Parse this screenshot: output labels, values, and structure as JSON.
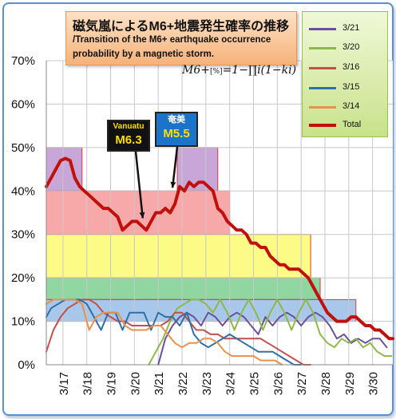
{
  "title": {
    "ja": "磁気嵐によるM6+地震発生確率の推移",
    "en": "/Transition of the M6+ earthquake occurrence probability by a magnetic storm."
  },
  "formula": {
    "lhs": "M6+",
    "sub": "[%]",
    "rhs": "=1−∏i(1−ki)"
  },
  "annotations": [
    {
      "top": "Vanuatu",
      "big": "M6.3",
      "x": 20.35,
      "y": 33
    },
    {
      "top": "奄美",
      "big": "M5.5",
      "x": 21.6,
      "y": 40
    }
  ],
  "chart_data": {
    "type": "line",
    "xlabel": "",
    "ylabel": "",
    "ylim": [
      0,
      70
    ],
    "xlim": [
      16.3,
      30.85
    ],
    "yticks": [
      "0%",
      "10%",
      "20%",
      "30%",
      "40%",
      "50%",
      "60%",
      "70%"
    ],
    "ytick_values": [
      0,
      10,
      20,
      30,
      40,
      50,
      60,
      70
    ],
    "xticks": [
      "3/17",
      "3/18",
      "3/19",
      "3/20",
      "3/21",
      "3/22",
      "3/23",
      "3/24",
      "3/25",
      "3/26",
      "3/27",
      "3/28",
      "3/29",
      "3/30"
    ],
    "xtick_values": [
      17,
      18,
      19,
      20,
      21,
      22,
      23,
      24,
      25,
      26,
      27,
      28,
      29,
      30
    ],
    "grid": true,
    "legend_position": "top-right",
    "bands": [
      {
        "x0": 16.3,
        "x1": 17.8,
        "y0": 40,
        "y1": 50,
        "color": "#c9a6d8"
      },
      {
        "x0": 21.8,
        "x1": 23.5,
        "y0": 40,
        "y1": 50,
        "color": "#c9a6d8"
      },
      {
        "x0": 16.3,
        "x1": 24.0,
        "y0": 30,
        "y1": 40,
        "color": "#f7a9a9"
      },
      {
        "x0": 16.3,
        "x1": 27.4,
        "y0": 20,
        "y1": 30,
        "color": "#fbfb86"
      },
      {
        "x0": 16.3,
        "x1": 27.8,
        "y0": 15,
        "y1": 20,
        "color": "#8fd6a0"
      },
      {
        "x0": 16.3,
        "x1": 29.3,
        "y0": 10,
        "y1": 15,
        "color": "#a7c8ea"
      }
    ],
    "series": [
      {
        "name": "3/21",
        "color": "#6b4f9a",
        "x": [
          21.0,
          21.3,
          21.6,
          21.9,
          22.2,
          22.5,
          22.8,
          23.1,
          23.4,
          23.7,
          24.0,
          24.3,
          24.6,
          24.9,
          25.2,
          25.5,
          25.8,
          26.1,
          26.4,
          26.7,
          27.0,
          27.3,
          27.6,
          27.9,
          28.2,
          28.5,
          28.8,
          29.1,
          29.4,
          29.7,
          30.0,
          30.3,
          30.6
        ],
        "y": [
          0,
          6,
          9,
          11,
          12,
          11,
          9,
          12,
          11,
          9,
          11,
          12,
          11,
          9,
          7,
          11,
          9,
          11,
          12,
          11,
          9,
          11,
          12,
          11,
          9,
          6,
          7,
          5,
          6,
          5,
          6,
          6,
          4
        ]
      },
      {
        "name": "3/20",
        "color": "#8db84a",
        "x": [
          20.6,
          20.9,
          21.2,
          21.5,
          21.8,
          22.1,
          22.4,
          22.7,
          23.0,
          23.3,
          23.6,
          23.9,
          24.2,
          24.5,
          24.8,
          25.1,
          25.4,
          25.7,
          26.0,
          26.3,
          26.6,
          26.9,
          27.2,
          27.5,
          27.8,
          28.1,
          28.4,
          28.7,
          29.0,
          29.3,
          29.6,
          29.9,
          30.2,
          30.5,
          30.8
        ],
        "y": [
          0,
          3,
          6,
          10,
          13,
          14,
          15,
          15,
          14,
          12,
          15,
          12,
          8,
          12,
          15,
          12,
          8,
          12,
          15,
          12,
          8,
          12,
          15,
          12,
          7,
          5,
          4,
          6,
          5,
          6,
          4,
          5,
          3,
          2,
          2
        ]
      },
      {
        "name": "3/16",
        "color": "#c0504d",
        "x": [
          16.3,
          16.6,
          16.9,
          17.2,
          17.5,
          17.8,
          18.1,
          18.4,
          18.7,
          19.0,
          19.3,
          19.6,
          19.9,
          20.2,
          20.5,
          20.8,
          21.1,
          21.4,
          21.7,
          22.0,
          22.3,
          22.6,
          22.9,
          23.2,
          23.5,
          23.8,
          24.1,
          24.4,
          24.7,
          25.0,
          25.3,
          25.6,
          25.9,
          26.2,
          26.5,
          26.8,
          27.1,
          27.4
        ],
        "y": [
          3,
          8,
          11,
          13,
          14,
          15,
          15,
          14,
          12,
          11,
          10,
          10,
          9,
          9,
          9,
          9,
          9,
          10,
          12,
          12,
          10,
          8,
          8,
          7,
          7,
          6,
          6,
          6,
          6,
          6,
          6,
          5,
          4,
          3,
          2,
          1,
          0,
          0
        ]
      },
      {
        "name": "3/15",
        "color": "#2e6fa7",
        "x": [
          16.3,
          16.5,
          16.8,
          17.1,
          17.4,
          17.7,
          18.0,
          18.3,
          18.6,
          18.9,
          19.2,
          19.5,
          19.8,
          20.1,
          20.4,
          20.7,
          21.0,
          21.3,
          21.6,
          21.9,
          22.2,
          22.5,
          22.8,
          23.1,
          23.4,
          23.7,
          24.0,
          24.3,
          24.6,
          24.9,
          25.2,
          25.5,
          25.8,
          26.1,
          26.4,
          26.7,
          27.0
        ],
        "y": [
          11,
          13,
          14,
          15,
          15,
          15,
          14,
          11,
          8,
          12,
          12,
          8,
          12,
          12,
          12,
          8,
          12,
          11,
          11,
          9,
          12,
          7,
          5,
          4,
          5,
          6,
          7,
          6,
          5,
          4,
          3,
          3,
          3,
          2,
          1,
          0,
          0
        ]
      },
      {
        "name": "3/14",
        "color": "#e8914a",
        "x": [
          16.3,
          16.6,
          16.9,
          17.2,
          17.5,
          17.8,
          18.1,
          18.4,
          18.7,
          19.0,
          19.3,
          19.6,
          19.9,
          20.2,
          20.5,
          20.8,
          21.1,
          21.4,
          21.7,
          22.0,
          22.3,
          22.6,
          22.9,
          23.2,
          23.5,
          23.8,
          24.1,
          24.4,
          24.7,
          25.0,
          25.3,
          25.6,
          25.9,
          26.2
        ],
        "y": [
          14,
          15,
          15,
          15,
          15,
          14,
          8,
          11,
          12,
          12,
          12,
          9,
          8,
          8,
          8,
          9,
          9,
          7,
          5,
          4,
          5,
          5,
          6,
          6,
          5,
          3,
          2,
          2,
          2,
          2,
          1,
          1,
          1,
          0
        ]
      },
      {
        "name": "Total",
        "color": "#c0100c",
        "x": [
          16.3,
          16.5,
          16.7,
          16.9,
          17.1,
          17.3,
          17.5,
          17.7,
          17.9,
          18.1,
          18.3,
          18.5,
          18.7,
          18.9,
          19.1,
          19.3,
          19.5,
          19.7,
          19.9,
          20.1,
          20.3,
          20.5,
          20.7,
          20.9,
          21.1,
          21.3,
          21.5,
          21.7,
          21.9,
          22.1,
          22.3,
          22.5,
          22.7,
          22.9,
          23.1,
          23.3,
          23.5,
          23.7,
          23.9,
          24.1,
          24.3,
          24.5,
          24.7,
          24.9,
          25.1,
          25.3,
          25.5,
          25.7,
          25.9,
          26.1,
          26.3,
          26.5,
          26.7,
          26.9,
          27.1,
          27.3,
          27.5,
          27.7,
          27.9,
          28.1,
          28.3,
          28.5,
          28.7,
          28.9,
          29.1,
          29.3,
          29.5,
          29.7,
          29.9,
          30.1,
          30.3,
          30.5,
          30.7,
          30.85
        ],
        "y": [
          41,
          43,
          45,
          47,
          47.5,
          47,
          43,
          41,
          40,
          39,
          38,
          37,
          36,
          36,
          35,
          34,
          31,
          32,
          33,
          33,
          32,
          31,
          33,
          35,
          35,
          36,
          35,
          37,
          41,
          40,
          42,
          41,
          42,
          42,
          41,
          40,
          36,
          35,
          33,
          32,
          31,
          31,
          30,
          28,
          28,
          27,
          27,
          25,
          24,
          23,
          23,
          22,
          22,
          22,
          21,
          20,
          18,
          16,
          14,
          12,
          11,
          10,
          10,
          10,
          11,
          11,
          10,
          9,
          9,
          8,
          8,
          7,
          6,
          6
        ]
      }
    ]
  }
}
